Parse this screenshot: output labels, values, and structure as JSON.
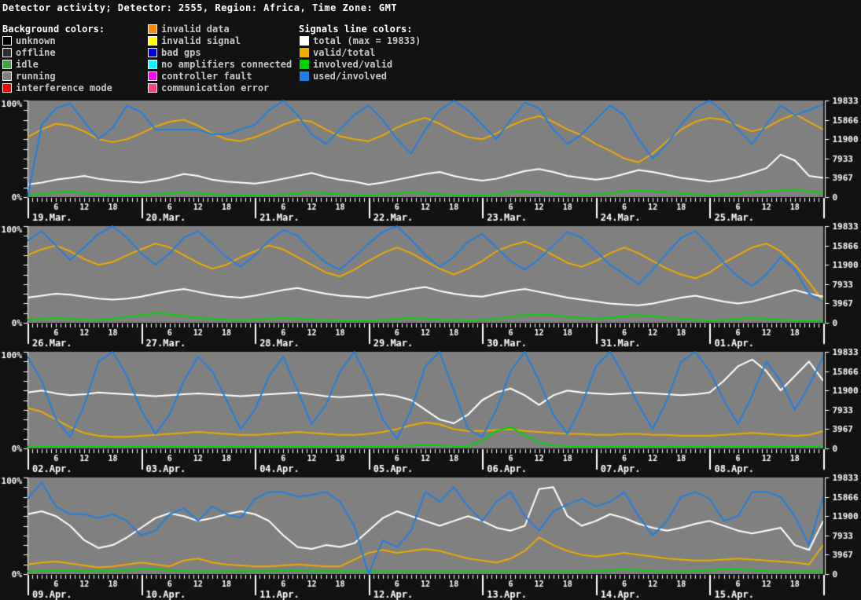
{
  "title": "Detector activity; Detector: 2555, Region: Africa, Time Zone: GMT",
  "colors": {
    "page_bg": "#121212",
    "plot_bg": "#808080",
    "axis": "#ffffff",
    "total_line": "#ffffff",
    "valid_line": "#f2a900",
    "involved_line": "#00d400",
    "used_line": "#1e7fe0"
  },
  "legend": {
    "background_header": "Background colors:",
    "background_items": [
      {
        "label": "unknown",
        "color": "#000000"
      },
      {
        "label": "offline",
        "color": "#2e2e2e"
      },
      {
        "label": "idle",
        "color": "#3fa33f"
      },
      {
        "label": "running",
        "color": "#828282"
      },
      {
        "label": "interference mode",
        "color": "#ff0000"
      }
    ],
    "status_items": [
      {
        "label": "invalid data",
        "color": "#ff8800"
      },
      {
        "label": "invalid signal",
        "color": "#ffff00"
      },
      {
        "label": "bad gps",
        "color": "#0000e0"
      },
      {
        "label": "no amplifiers connected",
        "color": "#00ffff"
      },
      {
        "label": "controller fault",
        "color": "#ff00ff"
      },
      {
        "label": "communication error",
        "color": "#ff4080"
      }
    ],
    "signals_header": "Signals line colors:",
    "signal_items": [
      {
        "label": "total (max = 19833)",
        "color": "#ffffff"
      },
      {
        "label": "valid/total",
        "color": "#f2a900"
      },
      {
        "label": "involved/valid",
        "color": "#00d400"
      },
      {
        "label": "used/involved",
        "color": "#1e7fe0"
      }
    ]
  },
  "axes": {
    "left_top": "100%",
    "left_bottom": "0%",
    "right_labels": [
      "19833",
      "15866",
      "11900",
      "7933",
      "3967",
      "0"
    ],
    "hour_labels": [
      "6",
      "12",
      "18"
    ],
    "right_axis_max": 19833
  },
  "chart_data": [
    {
      "type": "line",
      "ylim": [
        0,
        100
      ],
      "days": [
        "19.Mar.",
        "20.Mar.",
        "21.Mar.",
        "22.Mar.",
        "23.Mar.",
        "24.Mar.",
        "25.Mar."
      ],
      "sample_hours_step": 3,
      "series": [
        {
          "name": "valid/total",
          "color": "#f2a900",
          "values": [
            62,
            70,
            76,
            74,
            68,
            60,
            57,
            60,
            66,
            73,
            78,
            80,
            74,
            66,
            60,
            58,
            62,
            68,
            75,
            80,
            78,
            70,
            63,
            60,
            58,
            64,
            72,
            78,
            82,
            76,
            68,
            62,
            60,
            66,
            74,
            80,
            84,
            78,
            70,
            64,
            55,
            48,
            40,
            36,
            45,
            58,
            70,
            78,
            82,
            80,
            74,
            68,
            72,
            80,
            86,
            78,
            70
          ]
        },
        {
          "name": "total",
          "color": "#ffffff",
          "values": [
            13,
            15,
            18,
            20,
            22,
            19,
            17,
            16,
            15,
            17,
            20,
            24,
            22,
            18,
            16,
            15,
            14,
            16,
            19,
            22,
            25,
            21,
            18,
            16,
            13,
            15,
            18,
            21,
            24,
            26,
            22,
            19,
            17,
            19,
            23,
            27,
            29,
            26,
            22,
            20,
            18,
            20,
            24,
            28,
            26,
            23,
            20,
            18,
            16,
            18,
            21,
            25,
            30,
            44,
            38,
            22,
            20
          ]
        },
        {
          "name": "involved/valid",
          "color": "#00d400",
          "values": [
            2,
            3,
            5,
            6,
            4,
            3,
            2,
            2,
            2,
            3,
            4,
            5,
            4,
            3,
            2,
            2,
            2,
            2,
            3,
            4,
            5,
            4,
            3,
            2,
            2,
            3,
            4,
            5,
            4,
            3,
            2,
            2,
            2,
            3,
            5,
            6,
            5,
            4,
            3,
            2,
            3,
            4,
            6,
            7,
            6,
            5,
            4,
            3,
            2,
            3,
            4,
            5,
            6,
            7,
            8,
            6,
            4
          ]
        },
        {
          "name": "used/involved",
          "color": "#1e7fe0",
          "values": [
            0,
            75,
            92,
            97,
            78,
            60,
            72,
            95,
            88,
            70,
            70,
            70,
            70,
            65,
            65,
            70,
            75,
            90,
            100,
            85,
            65,
            55,
            70,
            85,
            95,
            80,
            60,
            45,
            70,
            90,
            100,
            90,
            75,
            60,
            80,
            98,
            92,
            70,
            55,
            65,
            80,
            95,
            85,
            60,
            40,
            55,
            75,
            92,
            100,
            88,
            70,
            55,
            75,
            95,
            85,
            90,
            96
          ]
        }
      ]
    },
    {
      "type": "line",
      "ylim": [
        0,
        100
      ],
      "days": [
        "26.Mar.",
        "27.Mar.",
        "28.Mar.",
        "29.Mar.",
        "30.Mar.",
        "31.Mar.",
        "01.Apr."
      ],
      "sample_hours_step": 3,
      "series": [
        {
          "name": "valid/total",
          "color": "#f2a900",
          "values": [
            70,
            76,
            80,
            74,
            66,
            60,
            63,
            70,
            76,
            82,
            78,
            70,
            62,
            56,
            60,
            68,
            74,
            80,
            76,
            68,
            60,
            52,
            48,
            55,
            64,
            72,
            78,
            72,
            64,
            56,
            50,
            56,
            64,
            74,
            80,
            84,
            78,
            70,
            62,
            58,
            64,
            72,
            78,
            72,
            64,
            56,
            50,
            46,
            52,
            62,
            70,
            78,
            82,
            74,
            60,
            42,
            22
          ]
        },
        {
          "name": "total",
          "color": "#ffffff",
          "values": [
            26,
            28,
            30,
            29,
            27,
            25,
            24,
            25,
            27,
            30,
            33,
            35,
            32,
            29,
            27,
            26,
            28,
            31,
            34,
            36,
            33,
            30,
            28,
            27,
            26,
            29,
            32,
            35,
            37,
            33,
            30,
            28,
            27,
            30,
            33,
            35,
            32,
            29,
            26,
            24,
            22,
            20,
            19,
            18,
            20,
            23,
            26,
            28,
            25,
            22,
            20,
            22,
            26,
            30,
            34,
            30,
            27
          ]
        },
        {
          "name": "involved/valid",
          "color": "#00d400",
          "values": [
            3,
            4,
            5,
            4,
            3,
            3,
            4,
            6,
            8,
            10,
            9,
            7,
            5,
            4,
            3,
            3,
            3,
            4,
            5,
            4,
            3,
            3,
            2,
            2,
            2,
            3,
            4,
            5,
            4,
            3,
            3,
            2,
            3,
            4,
            6,
            8,
            9,
            8,
            6,
            5,
            4,
            5,
            7,
            8,
            7,
            5,
            4,
            3,
            2,
            3,
            4,
            5,
            4,
            3,
            2,
            2,
            2
          ]
        },
        {
          "name": "used/involved",
          "color": "#1e7fe0",
          "values": [
            85,
            95,
            80,
            65,
            78,
            92,
            100,
            88,
            72,
            60,
            72,
            88,
            95,
            82,
            68,
            58,
            70,
            85,
            96,
            90,
            75,
            62,
            55,
            68,
            82,
            94,
            100,
            86,
            70,
            58,
            68,
            84,
            92,
            78,
            64,
            55,
            66,
            80,
            94,
            88,
            74,
            60,
            50,
            40,
            55,
            72,
            88,
            95,
            80,
            62,
            48,
            38,
            50,
            68,
            55,
            30,
            22
          ]
        }
      ]
    },
    {
      "type": "line",
      "ylim": [
        0,
        100
      ],
      "days": [
        "02.Apr.",
        "03.Apr.",
        "04.Apr.",
        "05.Apr.",
        "06.Apr.",
        "07.Apr.",
        "08.Apr."
      ],
      "sample_hours_step": 3,
      "series": [
        {
          "name": "valid/total",
          "color": "#f2a900",
          "values": [
            42,
            38,
            30,
            22,
            16,
            13,
            12,
            12,
            13,
            14,
            15,
            16,
            17,
            16,
            15,
            14,
            14,
            15,
            16,
            17,
            16,
            15,
            14,
            14,
            15,
            17,
            20,
            24,
            27,
            25,
            20,
            18,
            18,
            19,
            20,
            18,
            17,
            16,
            15,
            15,
            14,
            14,
            15,
            15,
            14,
            14,
            13,
            13,
            13,
            14,
            15,
            16,
            15,
            14,
            13,
            14,
            18
          ]
        },
        {
          "name": "total",
          "color": "#ffffff",
          "values": [
            58,
            60,
            57,
            55,
            56,
            58,
            57,
            56,
            55,
            54,
            55,
            56,
            57,
            56,
            55,
            54,
            55,
            56,
            57,
            58,
            56,
            54,
            53,
            54,
            55,
            56,
            54,
            50,
            40,
            30,
            26,
            35,
            50,
            58,
            62,
            55,
            45,
            55,
            60,
            58,
            57,
            56,
            57,
            58,
            57,
            56,
            55,
            56,
            58,
            70,
            85,
            92,
            80,
            60,
            75,
            90,
            70
          ]
        },
        {
          "name": "involved/valid",
          "color": "#00d400",
          "values": [
            2,
            2,
            2,
            2,
            2,
            2,
            2,
            2,
            2,
            2,
            2,
            2,
            2,
            2,
            2,
            2,
            2,
            2,
            2,
            2,
            2,
            2,
            2,
            2,
            2,
            2,
            2,
            3,
            4,
            3,
            2,
            2,
            8,
            18,
            22,
            14,
            6,
            3,
            2,
            2,
            2,
            2,
            2,
            2,
            2,
            2,
            2,
            2,
            2,
            2,
            2,
            2,
            2,
            2,
            2,
            2,
            2
          ]
        },
        {
          "name": "used/involved",
          "color": "#1e7fe0",
          "values": [
            95,
            70,
            30,
            12,
            45,
            90,
            100,
            75,
            40,
            15,
            35,
            70,
            95,
            80,
            50,
            20,
            40,
            75,
            95,
            60,
            25,
            45,
            80,
            100,
            70,
            30,
            10,
            40,
            85,
            100,
            60,
            20,
            12,
            40,
            80,
            100,
            70,
            35,
            15,
            45,
            85,
            100,
            75,
            45,
            20,
            50,
            90,
            100,
            80,
            50,
            25,
            55,
            90,
            70,
            40,
            65,
            95
          ]
        }
      ]
    },
    {
      "type": "line",
      "ylim": [
        0,
        100
      ],
      "days": [
        "09.Apr.",
        "10.Apr.",
        "11.Apr.",
        "12.Apr.",
        "13.Apr.",
        "14.Apr.",
        "15.Apr."
      ],
      "sample_hours_step": 3,
      "series": [
        {
          "name": "valid/total",
          "color": "#f2a900",
          "values": [
            10,
            12,
            13,
            11,
            9,
            7,
            8,
            10,
            12,
            10,
            8,
            14,
            16,
            12,
            10,
            9,
            8,
            8,
            9,
            10,
            9,
            8,
            8,
            15,
            22,
            25,
            22,
            24,
            26,
            24,
            20,
            16,
            14,
            12,
            16,
            24,
            38,
            30,
            24,
            20,
            18,
            20,
            22,
            20,
            18,
            16,
            15,
            14,
            14,
            15,
            16,
            15,
            14,
            13,
            12,
            10,
            30
          ]
        },
        {
          "name": "total",
          "color": "#ffffff",
          "values": [
            62,
            65,
            60,
            50,
            35,
            27,
            30,
            38,
            48,
            58,
            63,
            60,
            55,
            58,
            62,
            65,
            62,
            55,
            40,
            28,
            26,
            30,
            28,
            32,
            45,
            58,
            65,
            60,
            55,
            50,
            55,
            60,
            55,
            48,
            45,
            50,
            88,
            90,
            60,
            50,
            55,
            62,
            58,
            52,
            48,
            45,
            48,
            52,
            55,
            50,
            45,
            42,
            45,
            48,
            30,
            25,
            55
          ]
        },
        {
          "name": "involved/valid",
          "color": "#00d400",
          "values": [
            3,
            3,
            4,
            4,
            3,
            3,
            3,
            4,
            5,
            5,
            4,
            3,
            3,
            3,
            3,
            3,
            3,
            3,
            4,
            4,
            3,
            3,
            3,
            3,
            3,
            3,
            3,
            3,
            3,
            3,
            3,
            3,
            3,
            3,
            3,
            3,
            3,
            3,
            3,
            3,
            3,
            4,
            5,
            4,
            3,
            3,
            3,
            3,
            4,
            5,
            5,
            4,
            3,
            3,
            3,
            3,
            3
          ]
        },
        {
          "name": "used/involved",
          "color": "#1e7fe0",
          "values": [
            78,
            95,
            70,
            62,
            62,
            58,
            62,
            55,
            40,
            45,
            62,
            68,
            55,
            70,
            62,
            58,
            78,
            85,
            85,
            80,
            82,
            85,
            75,
            50,
            0,
            35,
            28,
            45,
            85,
            75,
            90,
            70,
            55,
            75,
            85,
            60,
            45,
            65,
            72,
            78,
            70,
            75,
            85,
            60,
            40,
            55,
            80,
            85,
            78,
            55,
            60,
            85,
            85,
            80,
            60,
            30,
            80
          ]
        }
      ]
    }
  ]
}
